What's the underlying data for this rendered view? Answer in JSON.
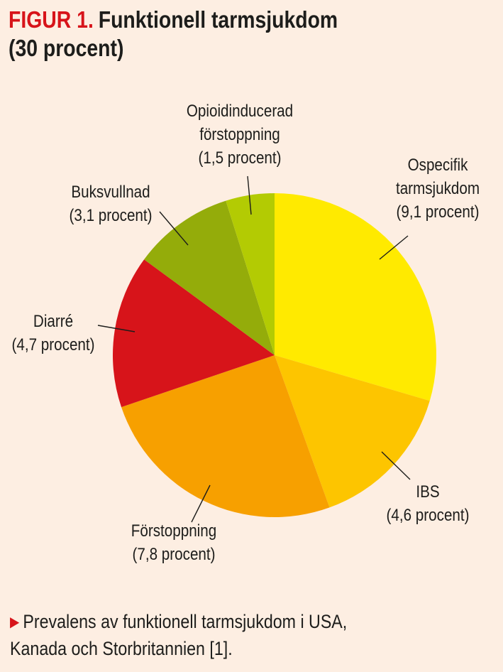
{
  "figure": {
    "label": "FIGUR 1.",
    "title_line1": "Funktionell tarmsjukdom",
    "title_line2": "(30 procent)"
  },
  "caption": {
    "marker": "▶",
    "text_line1": "Prevalens av funktionell tarmsjukdom i USA,",
    "text_line2": "Kanada och Storbritannien [1]."
  },
  "chart_data": {
    "type": "pie",
    "title": "Funktionell tarmsjukdom (30 procent)",
    "unit": "procent",
    "total": 30,
    "slices": [
      {
        "label": "Ospecifik tarmsjukdom",
        "value": 9.1,
        "color": "#ffea00",
        "label_lines": [
          "Ospecifik",
          "tarmsjukdom",
          "(9,1 procent)"
        ]
      },
      {
        "label": "IBS",
        "value": 4.6,
        "color": "#fdc500",
        "label_lines": [
          "IBS",
          "(4,6 procent)"
        ]
      },
      {
        "label": "Förstoppning",
        "value": 7.8,
        "color": "#f7a000",
        "label_lines": [
          "Förstoppning",
          "(7,8 procent)"
        ]
      },
      {
        "label": "Diarré",
        "value": 4.7,
        "color": "#d7141a",
        "label_lines": [
          "Diarré",
          "(4,7 procent)"
        ]
      },
      {
        "label": "Buksvullnad",
        "value": 3.1,
        "color": "#94ac0a",
        "label_lines": [
          "Buksvullnad",
          "(3,1 procent)"
        ]
      },
      {
        "label": "Opioidinducerad förstoppning",
        "value": 1.5,
        "color": "#b3cb03",
        "label_lines": [
          "Opioidinducerad",
          "förstoppning",
          "(1,5 procent)"
        ]
      }
    ]
  }
}
